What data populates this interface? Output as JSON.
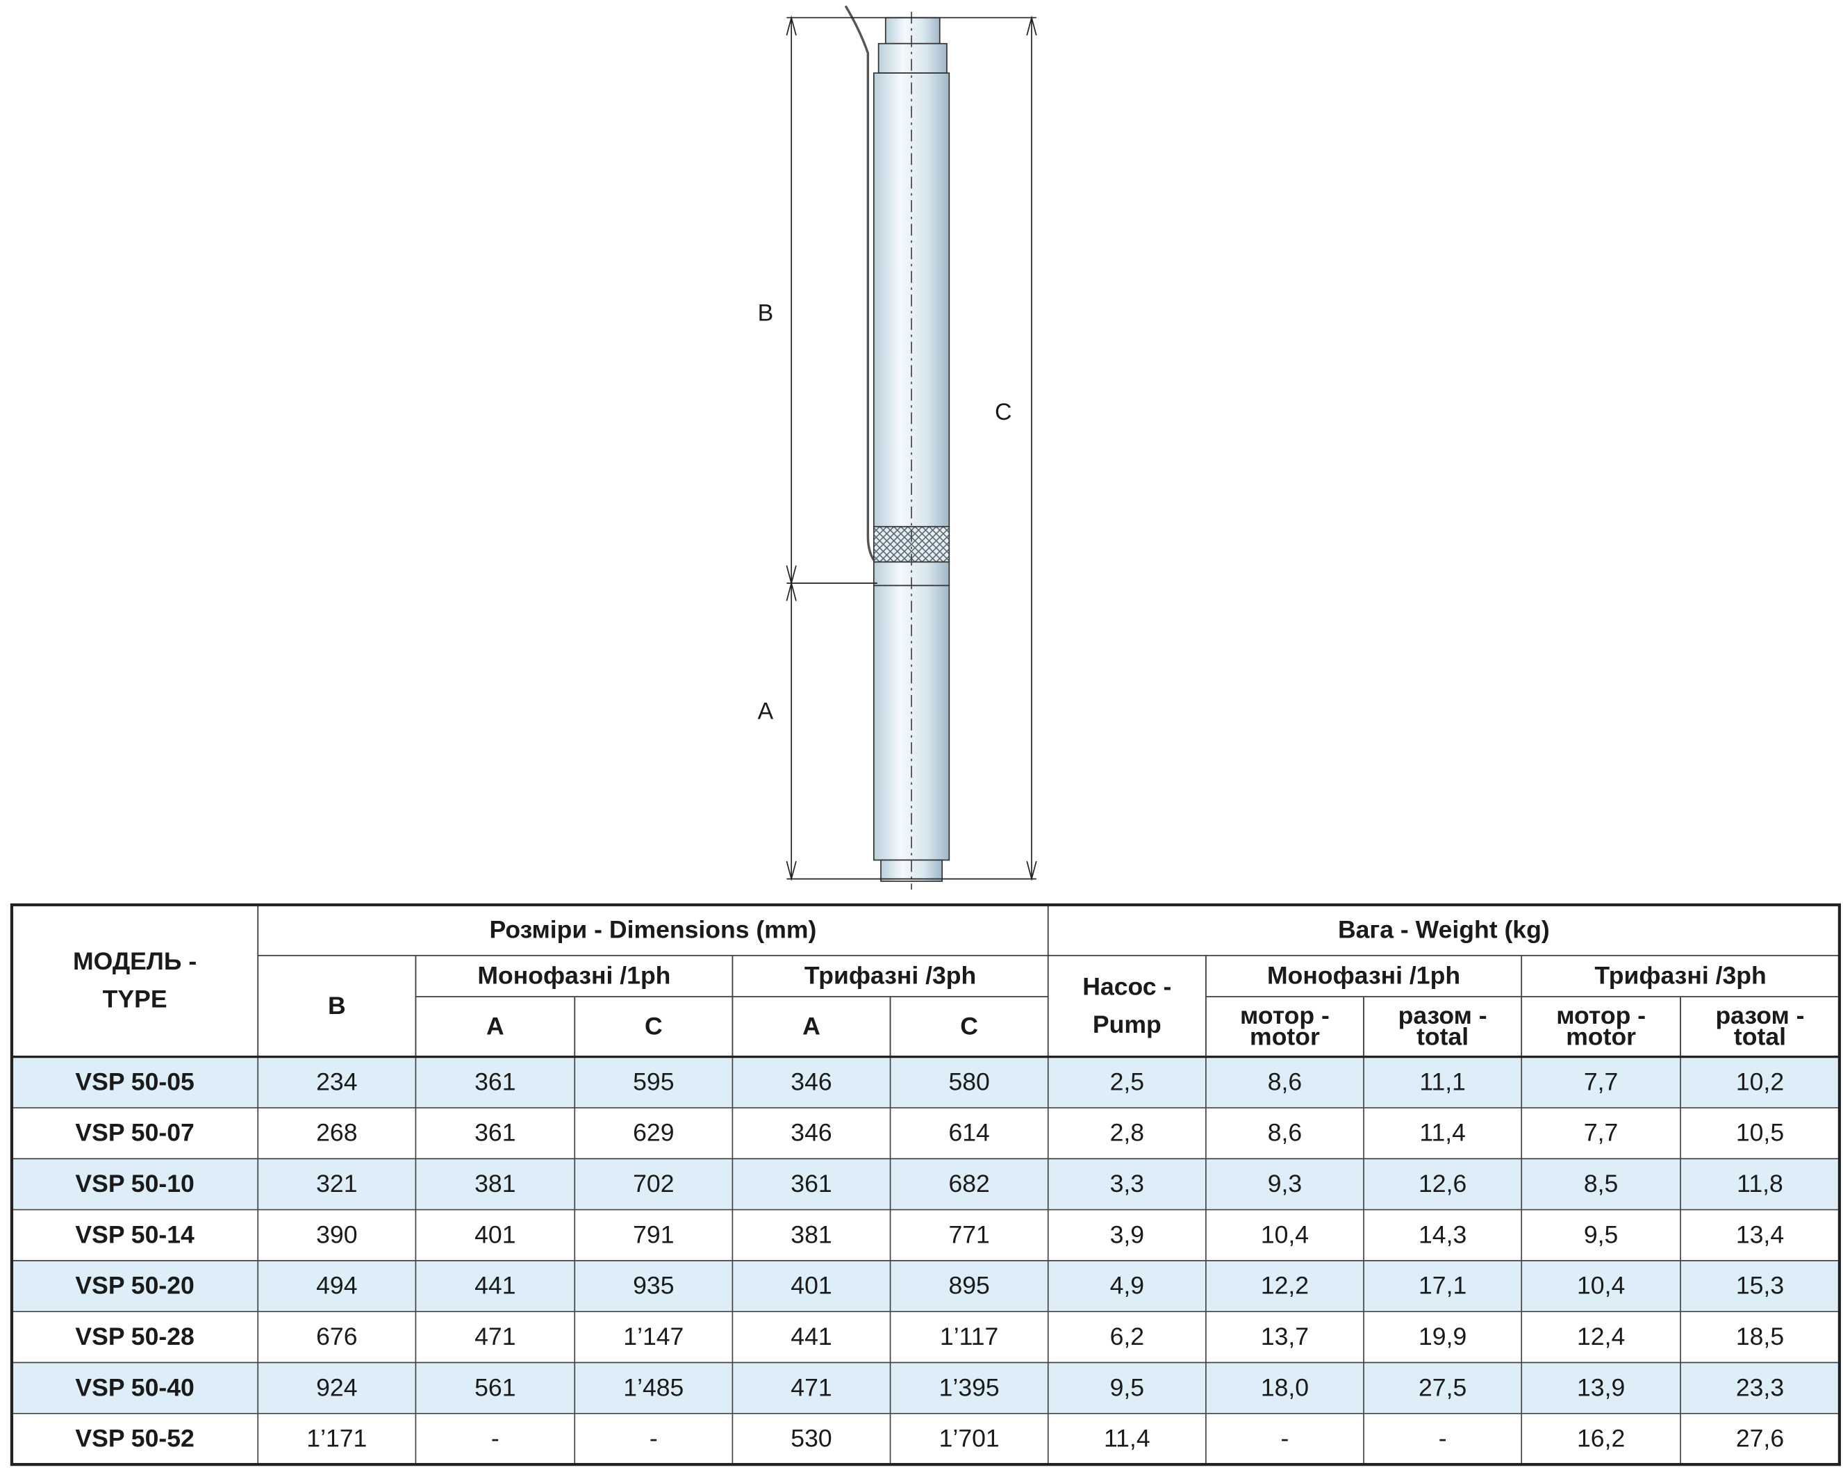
{
  "diagram": {
    "dimension_labels": [
      "B",
      "C",
      "A"
    ]
  },
  "table": {
    "header_cells": [
      {
        "lines": [
          "МОДЕЛЬ -",
          "TYPE"
        ]
      },
      {
        "lines": [
          "Розміри - Dimensions (mm)"
        ]
      },
      {
        "lines": [
          "Вага - Weight (kg)"
        ]
      },
      {
        "lines": [
          "B"
        ]
      },
      {
        "lines": [
          "Монофазні /1ph"
        ]
      },
      {
        "lines": [
          "Трифазні /3ph"
        ]
      },
      {
        "lines": [
          "Насос -",
          "Pump"
        ]
      },
      {
        "lines": [
          "Монофазні /1ph"
        ]
      },
      {
        "lines": [
          "Трифазні /3ph"
        ]
      },
      {
        "lines": [
          "A"
        ]
      },
      {
        "lines": [
          "C"
        ]
      },
      {
        "lines": [
          "A"
        ]
      },
      {
        "lines": [
          "C"
        ]
      },
      {
        "lines": [
          "мотор -",
          "motor"
        ]
      },
      {
        "lines": [
          "разом -",
          "total"
        ]
      },
      {
        "lines": [
          "мотор -",
          "motor"
        ]
      },
      {
        "lines": [
          "разом -",
          "total"
        ]
      }
    ],
    "rows": [
      [
        "VSP 50-05",
        "234",
        "361",
        "595",
        "346",
        "580",
        "2,5",
        "8,6",
        "11,1",
        "7,7",
        "10,2"
      ],
      [
        "VSP 50-07",
        "268",
        "361",
        "629",
        "346",
        "614",
        "2,8",
        "8,6",
        "11,4",
        "7,7",
        "10,5"
      ],
      [
        "VSP 50-10",
        "321",
        "381",
        "702",
        "361",
        "682",
        "3,3",
        "9,3",
        "12,6",
        "8,5",
        "11,8"
      ],
      [
        "VSP 50-14",
        "390",
        "401",
        "791",
        "381",
        "771",
        "3,9",
        "10,4",
        "14,3",
        "9,5",
        "13,4"
      ],
      [
        "VSP 50-20",
        "494",
        "441",
        "935",
        "401",
        "895",
        "4,9",
        "12,2",
        "17,1",
        "10,4",
        "15,3"
      ],
      [
        "VSP 50-28",
        "676",
        "471",
        "1’147",
        "441",
        "1’117",
        "6,2",
        "13,7",
        "19,9",
        "12,4",
        "18,5"
      ],
      [
        "VSP 50-40",
        "924",
        "561",
        "1’485",
        "471",
        "1’395",
        "9,5",
        "18,0",
        "27,5",
        "13,9",
        "23,3"
      ],
      [
        "VSP 50-52",
        "1’171",
        "-",
        "-",
        "530",
        "1’701",
        "11,4",
        "-",
        "-",
        "16,2",
        "27,6"
      ]
    ]
  }
}
